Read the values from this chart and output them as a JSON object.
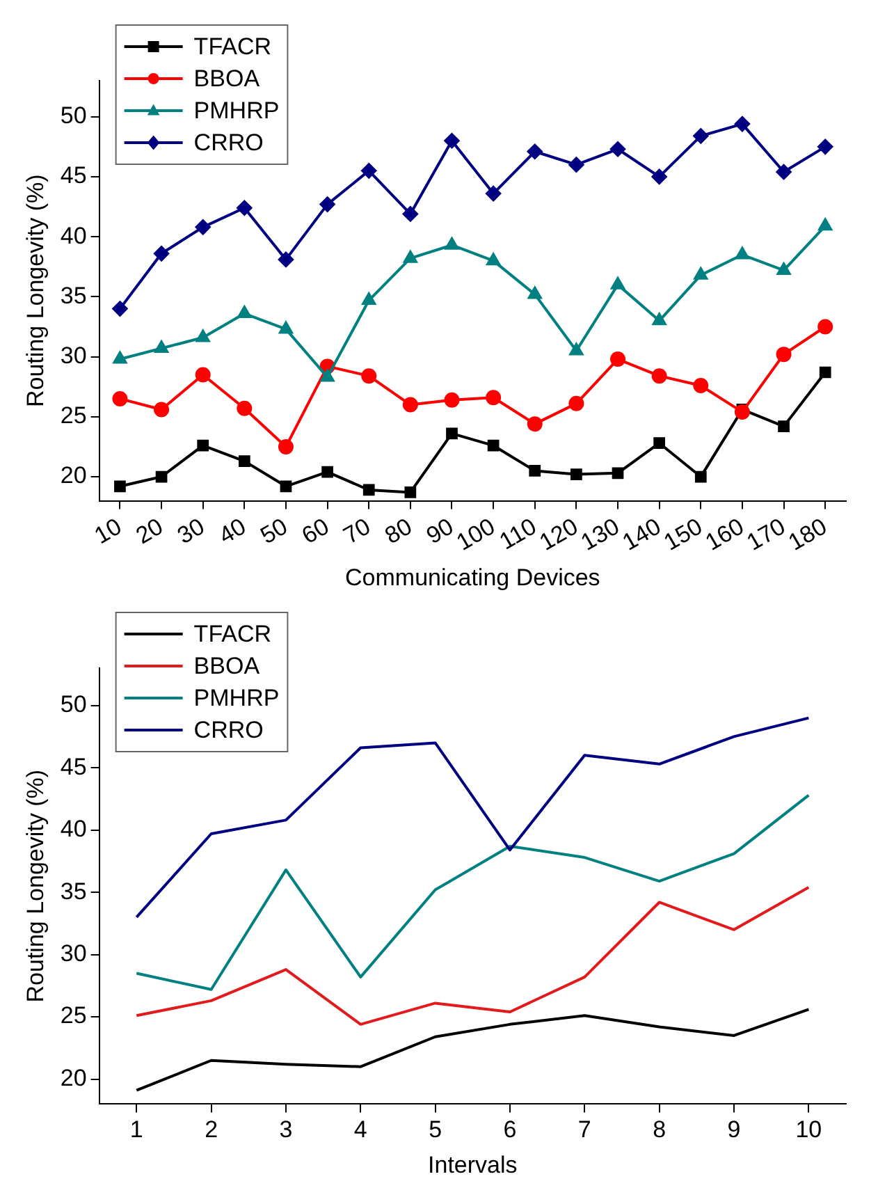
{
  "chart_data": [
    {
      "type": "line",
      "xlabel": "Communicating Devices",
      "ylabel": "Routing Longevity (%)",
      "categories": [
        "10",
        "20",
        "30",
        "40",
        "50",
        "60",
        "70",
        "80",
        "90",
        "100",
        "110",
        "120",
        "130",
        "140",
        "150",
        "160",
        "170",
        "180"
      ],
      "ylim": [
        18,
        53
      ],
      "yticks": [
        20,
        25,
        30,
        35,
        40,
        45,
        50
      ],
      "legend": "top left",
      "grid": false,
      "series": [
        {
          "name": "TFACR",
          "color": "#000000",
          "marker": "square",
          "values": [
            19.2,
            20.0,
            22.6,
            21.3,
            19.2,
            20.4,
            18.9,
            18.7,
            23.6,
            22.6,
            20.5,
            20.2,
            20.3,
            22.8,
            20.0,
            25.6,
            24.2,
            28.7
          ]
        },
        {
          "name": "BBOA",
          "color": "#ff0000",
          "marker": "circle",
          "values": [
            26.5,
            25.6,
            28.5,
            25.7,
            22.5,
            29.2,
            28.4,
            26.0,
            26.4,
            26.6,
            24.4,
            26.1,
            29.8,
            28.4,
            27.6,
            25.4,
            30.2,
            32.5
          ]
        },
        {
          "name": "PMHRP",
          "color": "#008080",
          "marker": "triangle",
          "values": [
            29.8,
            30.7,
            31.6,
            33.6,
            32.3,
            28.3,
            34.7,
            38.2,
            39.3,
            38.0,
            35.2,
            30.5,
            36.0,
            33.0,
            36.8,
            38.5,
            37.2,
            40.9
          ]
        },
        {
          "name": "CRRO",
          "color": "#000080",
          "marker": "diamond",
          "values": [
            34.0,
            38.6,
            40.8,
            42.4,
            38.1,
            42.7,
            45.5,
            41.9,
            48.0,
            43.6,
            47.1,
            46.0,
            47.3,
            45.0,
            48.4,
            49.4,
            45.4,
            47.5
          ]
        }
      ]
    },
    {
      "type": "line",
      "xlabel": "Intervals",
      "ylabel": "Routing Longevity (%)",
      "x": [
        1,
        2,
        3,
        4,
        5,
        6,
        7,
        8,
        9,
        10
      ],
      "xlim": [
        0.5,
        10.5
      ],
      "xticks": [
        1,
        2,
        3,
        4,
        5,
        6,
        7,
        8,
        9,
        10
      ],
      "ylim": [
        18,
        53
      ],
      "yticks": [
        20,
        25,
        30,
        35,
        40,
        45,
        50
      ],
      "legend": "top left",
      "grid": false,
      "marker": "none",
      "series": [
        {
          "name": "TFACR",
          "color": "#000000",
          "values": [
            19.1,
            21.5,
            21.2,
            21.0,
            23.4,
            24.4,
            25.1,
            24.2,
            23.5,
            25.6
          ]
        },
        {
          "name": "BBOA",
          "color": "#e31a1c",
          "values": [
            25.1,
            26.3,
            28.8,
            24.4,
            26.1,
            25.4,
            28.2,
            34.2,
            32.0,
            35.4
          ]
        },
        {
          "name": "PMHRP",
          "color": "#008080",
          "values": [
            28.5,
            27.2,
            36.8,
            28.2,
            35.2,
            38.7,
            37.8,
            35.9,
            38.1,
            42.8
          ]
        },
        {
          "name": "CRRO",
          "color": "#000080",
          "values": [
            33.0,
            39.7,
            40.8,
            46.6,
            47.0,
            38.4,
            46.0,
            45.3,
            47.5,
            49.0
          ]
        }
      ]
    }
  ]
}
